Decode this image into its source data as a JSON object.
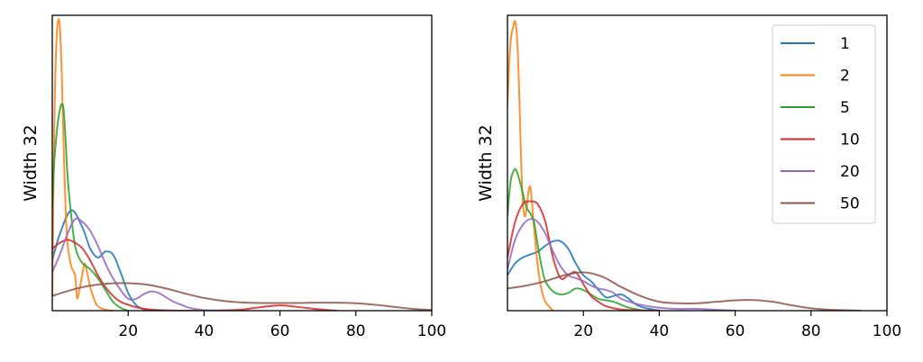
{
  "chart_data": [
    {
      "type": "line",
      "ylabel": "Width 32",
      "xlim": [
        0,
        100
      ],
      "ylim": [
        0,
        1.0
      ],
      "xticks": [
        20,
        40,
        60,
        80,
        100
      ],
      "yticks": [],
      "legend": null,
      "series": [
        {
          "name": "1",
          "color": "#1f77b4",
          "x": [
            0,
            2,
            5,
            8,
            10,
            12,
            14,
            16,
            18,
            20,
            22,
            24,
            26,
            30
          ],
          "y": [
            0.17,
            0.26,
            0.34,
            0.28,
            0.21,
            0.18,
            0.2,
            0.19,
            0.13,
            0.06,
            0.02,
            0.005,
            0.0,
            0.0
          ]
        },
        {
          "name": "2",
          "color": "#ff7f0e",
          "x": [
            0,
            0.5,
            1,
            1.5,
            2,
            2.5,
            3,
            3.5,
            4,
            5,
            6,
            6.5,
            7,
            8,
            8.5,
            9,
            10,
            11,
            12,
            14,
            16
          ],
          "y": [
            0.05,
            0.6,
            0.88,
            0.98,
            0.96,
            0.8,
            0.55,
            0.35,
            0.23,
            0.15,
            0.12,
            0.045,
            0.06,
            0.13,
            0.16,
            0.14,
            0.08,
            0.04,
            0.015,
            0.003,
            0.0
          ]
        },
        {
          "name": "5",
          "color": "#2ca02c",
          "x": [
            0,
            0.5,
            1,
            1.5,
            2,
            2.5,
            3,
            3.5,
            4,
            5,
            6,
            7,
            8,
            9,
            10,
            12,
            14,
            16,
            18,
            20
          ],
          "y": [
            0.35,
            0.5,
            0.58,
            0.64,
            0.68,
            0.7,
            0.68,
            0.58,
            0.46,
            0.32,
            0.22,
            0.18,
            0.16,
            0.15,
            0.14,
            0.11,
            0.07,
            0.03,
            0.01,
            0.0
          ]
        },
        {
          "name": "10",
          "color": "#d62728",
          "x": [
            0,
            2,
            4,
            6,
            8,
            10,
            12,
            14,
            16,
            18,
            20,
            22,
            24,
            26,
            30,
            35,
            40,
            45,
            50,
            55,
            60,
            65,
            70,
            75
          ],
          "y": [
            0.21,
            0.23,
            0.24,
            0.23,
            0.21,
            0.17,
            0.12,
            0.08,
            0.05,
            0.03,
            0.02,
            0.012,
            0.007,
            0.004,
            0.001,
            0.0,
            0.0,
            0.001,
            0.004,
            0.012,
            0.018,
            0.012,
            0.005,
            0.0
          ]
        },
        {
          "name": "20",
          "color": "#9467bd",
          "x": [
            0,
            2,
            4,
            6,
            8,
            10,
            12,
            14,
            16,
            18,
            20,
            22,
            24,
            26,
            28,
            30,
            32,
            34,
            36,
            38,
            40,
            44
          ],
          "y": [
            0.13,
            0.19,
            0.26,
            0.31,
            0.3,
            0.27,
            0.22,
            0.16,
            0.11,
            0.07,
            0.04,
            0.04,
            0.055,
            0.065,
            0.06,
            0.045,
            0.03,
            0.02,
            0.01,
            0.005,
            0.002,
            0.0
          ]
        },
        {
          "name": "50",
          "color": "#8c564b",
          "x": [
            0,
            5,
            10,
            15,
            20,
            25,
            30,
            35,
            40,
            45,
            50,
            55,
            60,
            65,
            70,
            75,
            80,
            85,
            90,
            95,
            100
          ],
          "y": [
            0.05,
            0.07,
            0.085,
            0.092,
            0.093,
            0.088,
            0.075,
            0.058,
            0.043,
            0.033,
            0.028,
            0.026,
            0.026,
            0.026,
            0.027,
            0.027,
            0.025,
            0.02,
            0.013,
            0.006,
            0.002
          ]
        }
      ]
    },
    {
      "type": "line",
      "ylabel": "Width 32",
      "xlim": [
        0,
        100
      ],
      "ylim": [
        0,
        1.0
      ],
      "xticks": [
        20,
        40,
        60,
        80,
        100
      ],
      "yticks": [],
      "legend": {
        "position": "top-right",
        "entries": [
          "1",
          "2",
          "5",
          "10",
          "20",
          "50"
        ]
      },
      "series": [
        {
          "name": "1",
          "color": "#1f77b4",
          "x": [
            0,
            2,
            4,
            6,
            8,
            10,
            12,
            14,
            16,
            18,
            20,
            22,
            24,
            26,
            28,
            30,
            32,
            34,
            36,
            40
          ],
          "y": [
            0.12,
            0.16,
            0.18,
            0.19,
            0.2,
            0.22,
            0.235,
            0.235,
            0.21,
            0.16,
            0.12,
            0.1,
            0.07,
            0.045,
            0.05,
            0.055,
            0.04,
            0.02,
            0.01,
            0.0
          ]
        },
        {
          "name": "2",
          "color": "#ff7f0e",
          "x": [
            0,
            0.5,
            1,
            1.5,
            2,
            2.5,
            3,
            3.5,
            4,
            4.5,
            5,
            5.5,
            6,
            6.5,
            7,
            8,
            9,
            10,
            12
          ],
          "y": [
            0.7,
            0.85,
            0.93,
            0.96,
            0.98,
            0.93,
            0.78,
            0.55,
            0.38,
            0.32,
            0.34,
            0.4,
            0.42,
            0.36,
            0.28,
            0.15,
            0.07,
            0.03,
            0.0
          ]
        },
        {
          "name": "5",
          "color": "#2ca02c",
          "x": [
            0,
            0.5,
            1,
            1.5,
            2,
            2.5,
            3,
            4,
            5,
            6,
            7,
            8,
            9,
            10,
            12,
            14,
            16,
            18,
            20,
            22,
            24,
            26,
            28,
            30,
            32,
            36
          ],
          "y": [
            0.32,
            0.4,
            0.45,
            0.47,
            0.48,
            0.47,
            0.45,
            0.4,
            0.35,
            0.33,
            0.3,
            0.22,
            0.15,
            0.1,
            0.065,
            0.055,
            0.06,
            0.075,
            0.07,
            0.055,
            0.04,
            0.035,
            0.03,
            0.02,
            0.01,
            0.0
          ]
        },
        {
          "name": "10",
          "color": "#d62728",
          "x": [
            0,
            2,
            4,
            6,
            8,
            10,
            12,
            14,
            16,
            18,
            20,
            22,
            24,
            26,
            30,
            35,
            40
          ],
          "y": [
            0.18,
            0.3,
            0.36,
            0.37,
            0.36,
            0.3,
            0.18,
            0.11,
            0.12,
            0.13,
            0.09,
            0.05,
            0.03,
            0.015,
            0.004,
            0.001,
            0.0
          ]
        },
        {
          "name": "20",
          "color": "#9467bd",
          "x": [
            0,
            2,
            4,
            6,
            8,
            10,
            12,
            14,
            16,
            18,
            20,
            22,
            24,
            26,
            28,
            30,
            35,
            40,
            45,
            50,
            55,
            60
          ],
          "y": [
            0.14,
            0.24,
            0.29,
            0.31,
            0.3,
            0.26,
            0.2,
            0.15,
            0.12,
            0.11,
            0.1,
            0.085,
            0.075,
            0.07,
            0.06,
            0.04,
            0.02,
            0.01,
            0.006,
            0.006,
            0.003,
            0.0
          ]
        },
        {
          "name": "50",
          "color": "#8c564b",
          "x": [
            0,
            5,
            10,
            15,
            20,
            25,
            30,
            35,
            40,
            45,
            50,
            55,
            60,
            65,
            70,
            75,
            80,
            85,
            90,
            93
          ],
          "y": [
            0.075,
            0.085,
            0.1,
            0.12,
            0.13,
            0.115,
            0.08,
            0.05,
            0.03,
            0.025,
            0.025,
            0.03,
            0.035,
            0.036,
            0.03,
            0.018,
            0.008,
            0.003,
            0.001,
            0.0
          ]
        }
      ]
    }
  ]
}
